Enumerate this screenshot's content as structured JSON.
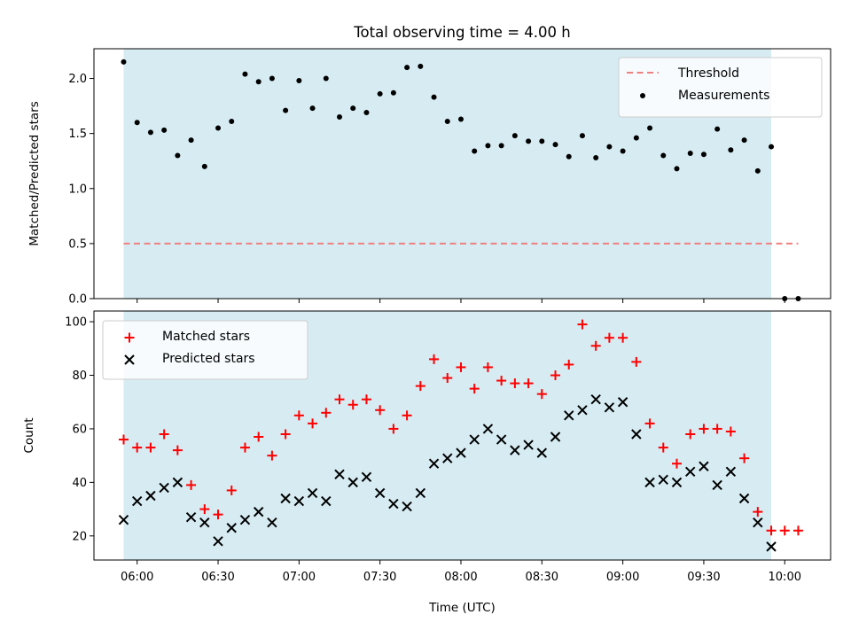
{
  "chart_data": [
    {
      "type": "scatter",
      "title": "Total observing time = 4.00 h",
      "ylabel": "Matched/Predicted stars",
      "ylim": [
        0,
        2.27
      ],
      "yticks": [
        "0.0",
        "0.5",
        "1.0",
        "1.5",
        "2.0"
      ],
      "shaded_span": [
        "05:55",
        "09:55"
      ],
      "shade_color": "#add8e6",
      "legend": {
        "placement": "top-right"
      },
      "series": [
        {
          "name": "Threshold",
          "kind": "line",
          "style": "dashed",
          "color": "#f08080",
          "x": [
            "05:55",
            "10:05"
          ],
          "y": [
            0.5,
            0.5
          ]
        },
        {
          "name": "Measurements",
          "kind": "points",
          "color": "#000000",
          "x": [
            "05:55",
            "05:60",
            "06:05",
            "06:10",
            "06:15",
            "06:20",
            "06:25",
            "06:30",
            "06:35",
            "06:40",
            "06:45",
            "06:50",
            "06:55",
            "07:00",
            "07:05",
            "07:10",
            "07:15",
            "07:20",
            "07:25",
            "07:30",
            "07:35",
            "07:40",
            "07:45",
            "07:50",
            "07:55",
            "08:00",
            "08:05",
            "08:10",
            "08:15",
            "08:20",
            "08:25",
            "08:30",
            "08:35",
            "08:40",
            "08:45",
            "08:50",
            "08:55",
            "09:00",
            "09:05",
            "09:10",
            "09:15",
            "09:20",
            "09:25",
            "09:30",
            "09:35",
            "09:40",
            "09:45",
            "09:50",
            "09:55",
            "10:00",
            "10:05"
          ],
          "y": [
            2.15,
            1.6,
            1.51,
            1.53,
            1.3,
            1.44,
            1.2,
            1.55,
            1.61,
            2.04,
            1.97,
            2.0,
            1.71,
            1.98,
            1.73,
            2.0,
            1.65,
            1.73,
            1.69,
            1.86,
            1.87,
            2.1,
            2.11,
            1.83,
            1.61,
            1.63,
            1.34,
            1.39,
            1.39,
            1.48,
            1.43,
            1.43,
            1.4,
            1.29,
            1.48,
            1.28,
            1.38,
            1.34,
            1.46,
            1.55,
            1.3,
            1.18,
            1.32,
            1.31,
            1.54,
            1.35,
            1.44,
            1.16,
            1.38,
            0.0,
            0.0
          ]
        }
      ]
    },
    {
      "type": "scatter",
      "xlabel": "Time (UTC)",
      "ylabel": "Count",
      "ylim": [
        11,
        104
      ],
      "yticks": [
        "20",
        "40",
        "60",
        "80",
        "100"
      ],
      "xticks": [
        "06:00",
        "06:30",
        "07:00",
        "07:30",
        "08:00",
        "08:30",
        "09:00",
        "09:30",
        "10:00"
      ],
      "shaded_span": [
        "05:55",
        "09:55"
      ],
      "shade_color": "#add8e6",
      "legend": {
        "placement": "top-left"
      },
      "series": [
        {
          "name": "Matched stars",
          "marker": "plus",
          "color": "#ff0000",
          "x": [
            "05:55",
            "05:60",
            "06:05",
            "06:10",
            "06:15",
            "06:20",
            "06:25",
            "06:30",
            "06:35",
            "06:40",
            "06:45",
            "06:50",
            "06:55",
            "07:00",
            "07:05",
            "07:10",
            "07:15",
            "07:20",
            "07:25",
            "07:30",
            "07:35",
            "07:40",
            "07:45",
            "07:50",
            "07:55",
            "08:00",
            "08:05",
            "08:10",
            "08:15",
            "08:20",
            "08:25",
            "08:30",
            "08:35",
            "08:40",
            "08:45",
            "08:50",
            "08:55",
            "09:00",
            "09:05",
            "09:10",
            "09:15",
            "09:20",
            "09:25",
            "09:30",
            "09:35",
            "09:40",
            "09:45",
            "09:50",
            "09:55",
            "10:00",
            "10:05"
          ],
          "y": [
            56,
            53,
            53,
            58,
            52,
            39,
            30,
            28,
            37,
            53,
            57,
            50,
            58,
            65,
            62,
            66,
            71,
            69,
            71,
            67,
            60,
            65,
            76,
            86,
            79,
            83,
            75,
            83,
            78,
            77,
            77,
            73,
            80,
            84,
            99,
            91,
            94,
            94,
            85,
            62,
            53,
            47,
            58,
            60,
            60,
            59,
            49,
            29,
            22,
            22,
            22
          ]
        },
        {
          "name": "Predicted stars",
          "marker": "x",
          "color": "#000000",
          "x": [
            "05:55",
            "05:60",
            "06:05",
            "06:10",
            "06:15",
            "06:20",
            "06:25",
            "06:30",
            "06:35",
            "06:40",
            "06:45",
            "06:50",
            "06:55",
            "07:00",
            "07:05",
            "07:10",
            "07:15",
            "07:20",
            "07:25",
            "07:30",
            "07:35",
            "07:40",
            "07:45",
            "07:50",
            "07:55",
            "08:00",
            "08:05",
            "08:10",
            "08:15",
            "08:20",
            "08:25",
            "08:30",
            "08:35",
            "08:40",
            "08:45",
            "08:50",
            "08:55",
            "09:00",
            "09:05",
            "09:10",
            "09:15",
            "09:20",
            "09:25",
            "09:30",
            "09:35",
            "09:40",
            "09:45",
            "09:50",
            "09:55"
          ],
          "y": [
            26,
            33,
            35,
            38,
            40,
            27,
            25,
            18,
            23,
            26,
            29,
            25,
            34,
            33,
            36,
            33,
            43,
            40,
            42,
            36,
            32,
            31,
            36,
            47,
            49,
            51,
            56,
            60,
            56,
            52,
            54,
            51,
            57,
            65,
            67,
            71,
            68,
            70,
            58,
            40,
            41,
            40,
            44,
            46,
            39,
            44,
            34,
            25,
            16
          ]
        }
      ]
    }
  ]
}
